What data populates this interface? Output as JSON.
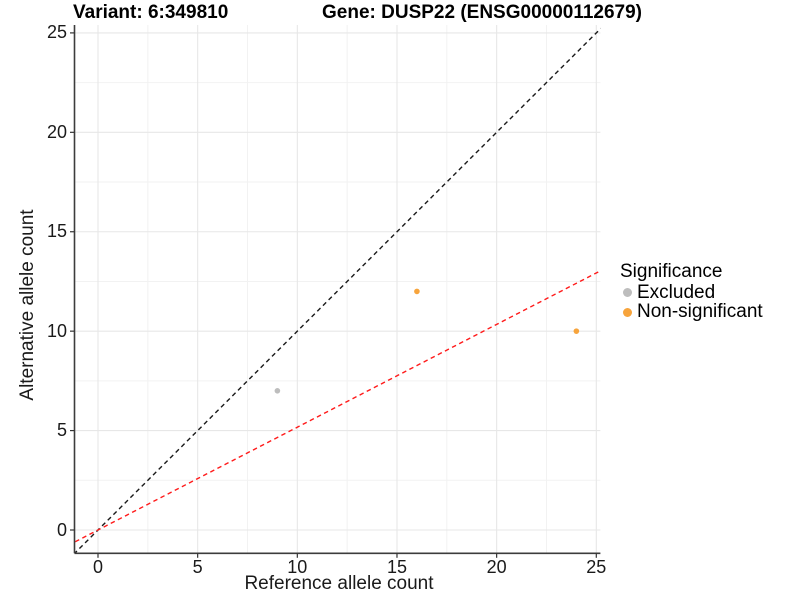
{
  "header": {
    "title_left": "Variant: 6:349810",
    "title_right": "Gene: DUSP22 (ENSG00000112679)"
  },
  "chart_data": {
    "type": "scatter",
    "xlabel": "Reference allele count",
    "ylabel": "Alternative allele count",
    "xlim": [
      -1.3,
      25.3
    ],
    "ylim": [
      -1.3,
      25.4
    ],
    "x_major_ticks": [
      0,
      5,
      10,
      15,
      20,
      25
    ],
    "y_major_ticks": [
      0,
      5,
      10,
      15,
      20,
      25
    ],
    "x_minor_ticks": [
      2.5,
      7.5,
      12.5,
      17.5,
      22.5
    ],
    "y_minor_ticks": [
      2.5,
      7.5,
      12.5,
      17.5,
      22.5
    ],
    "grid": true,
    "series": [
      {
        "name": "Excluded",
        "color": "#BDBDBD",
        "points": [
          [
            9,
            7
          ]
        ]
      },
      {
        "name": "Non-significant",
        "color": "#F7A43C",
        "points": [
          [
            16,
            12
          ],
          [
            24,
            10
          ]
        ]
      }
    ],
    "ref_lines": [
      {
        "name": "identity-line",
        "slope": 1,
        "intercept": 0,
        "color": "#1A1A1A",
        "style": "dashed"
      },
      {
        "name": "expected-ratio-line",
        "slope": 0.517,
        "intercept": 0,
        "color": "#FF1A1A",
        "style": "dashed"
      }
    ],
    "legend": {
      "title": "Significance",
      "position": "right",
      "items": [
        {
          "label": "Excluded",
          "color": "#BDBDBD"
        },
        {
          "label": "Non-significant",
          "color": "#F7A43C"
        }
      ]
    },
    "colors": {
      "axis_line": "#3C3C3C",
      "tick_mark": "#333333",
      "grid_major": "#E7E7E7",
      "grid_minor": "#F2F2F2"
    }
  }
}
